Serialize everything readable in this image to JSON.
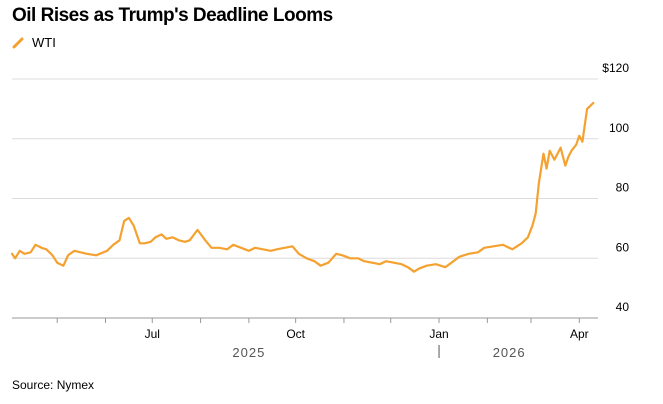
{
  "title": "Oil Rises as Trump's Deadline Looms",
  "source": "Source: Nymex",
  "colors": {
    "series": "#f5a130",
    "grid": "#dcdcdc",
    "axis": "#999999"
  },
  "chart_data": {
    "type": "line",
    "title": "Oil Rises as Trump's Deadline Looms",
    "xlabel": "",
    "ylabel": "",
    "ylim": [
      40,
      120
    ],
    "y_ticks": [
      {
        "value": 120,
        "label": "$120"
      },
      {
        "value": 100,
        "label": "100"
      },
      {
        "value": 80,
        "label": "80"
      },
      {
        "value": 60,
        "label": "60"
      },
      {
        "value": 40,
        "label": "40"
      }
    ],
    "x_range": [
      "2025-04-02",
      "2026-04-13"
    ],
    "month_ticks": [
      "2025-05-01",
      "2025-06-01",
      "2025-07-01",
      "2025-08-01",
      "2025-09-01",
      "2025-10-01",
      "2025-11-01",
      "2025-12-01",
      "2026-01-01",
      "2026-02-01",
      "2026-03-01",
      "2026-04-01"
    ],
    "x_labels": [
      {
        "date": "2025-07-01",
        "label": "Jul"
      },
      {
        "date": "2025-10-01",
        "label": "Oct"
      },
      {
        "date": "2026-01-01",
        "label": "Jan"
      },
      {
        "date": "2026-04-01",
        "label": "Apr"
      }
    ],
    "year_labels": [
      {
        "date": "2025-09-01",
        "label": "2025"
      },
      {
        "date": "2026-02-15",
        "label": "2026"
      }
    ],
    "year_divider": "2026-01-01",
    "legend": "top-left",
    "grid": true,
    "series": [
      {
        "name": "WTI",
        "color": "#f5a130",
        "x": [
          "2025-04-02",
          "2025-04-04",
          "2025-04-07",
          "2025-04-10",
          "2025-04-14",
          "2025-04-17",
          "2025-04-21",
          "2025-04-24",
          "2025-04-28",
          "2025-05-01",
          "2025-05-05",
          "2025-05-08",
          "2025-05-12",
          "2025-05-16",
          "2025-05-20",
          "2025-05-26",
          "2025-06-02",
          "2025-06-06",
          "2025-06-10",
          "2025-06-13",
          "2025-06-16",
          "2025-06-19",
          "2025-06-23",
          "2025-06-26",
          "2025-06-30",
          "2025-07-03",
          "2025-07-07",
          "2025-07-10",
          "2025-07-14",
          "2025-07-18",
          "2025-07-22",
          "2025-07-25",
          "2025-07-30",
          "2025-08-04",
          "2025-08-08",
          "2025-08-13",
          "2025-08-18",
          "2025-08-22",
          "2025-08-27",
          "2025-09-01",
          "2025-09-05",
          "2025-09-10",
          "2025-09-15",
          "2025-09-19",
          "2025-09-24",
          "2025-09-29",
          "2025-10-03",
          "2025-10-08",
          "2025-10-13",
          "2025-10-17",
          "2025-10-22",
          "2025-10-27",
          "2025-10-31",
          "2025-11-05",
          "2025-11-10",
          "2025-11-14",
          "2025-11-19",
          "2025-11-24",
          "2025-11-28",
          "2025-12-03",
          "2025-12-08",
          "2025-12-12",
          "2025-12-16",
          "2025-12-19",
          "2025-12-24",
          "2025-12-30",
          "2026-01-05",
          "2026-01-09",
          "2026-01-14",
          "2026-01-20",
          "2026-01-26",
          "2026-01-30",
          "2026-02-05",
          "2026-02-11",
          "2026-02-17",
          "2026-02-23",
          "2026-02-27",
          "2026-03-02",
          "2026-03-04",
          "2026-03-06",
          "2026-03-09",
          "2026-03-11",
          "2026-03-13",
          "2026-03-16",
          "2026-03-18",
          "2026-03-20",
          "2026-03-23",
          "2026-03-25",
          "2026-03-27",
          "2026-03-30",
          "2026-04-01",
          "2026-04-03",
          "2026-04-06",
          "2026-04-10"
        ],
        "values": [
          61.5,
          60.0,
          62.5,
          61.5,
          62.0,
          64.5,
          63.5,
          63.0,
          61.0,
          58.5,
          57.5,
          61.0,
          62.5,
          62.0,
          61.5,
          61.0,
          62.5,
          64.5,
          66.0,
          72.5,
          73.5,
          71.0,
          65.0,
          65.0,
          65.5,
          67.0,
          68.0,
          66.5,
          67.0,
          66.0,
          65.5,
          66.0,
          69.5,
          66.0,
          63.5,
          63.5,
          63.0,
          64.5,
          63.5,
          62.5,
          63.5,
          63.0,
          62.5,
          63.0,
          63.5,
          64.0,
          61.5,
          60.0,
          59.0,
          57.5,
          58.5,
          61.5,
          61.0,
          60.0,
          60.0,
          59.0,
          58.5,
          58.0,
          59.0,
          58.5,
          58.0,
          57.0,
          55.5,
          56.5,
          57.5,
          58.0,
          57.0,
          58.5,
          60.5,
          61.5,
          62.0,
          63.5,
          64.0,
          64.5,
          63.0,
          65.0,
          67.0,
          71.0,
          75.0,
          85.0,
          95.0,
          90.0,
          96.0,
          93.0,
          95.0,
          97.0,
          91.0,
          94.0,
          96.0,
          98.0,
          101.0,
          99.0,
          110.0,
          112.0
        ]
      }
    ]
  }
}
